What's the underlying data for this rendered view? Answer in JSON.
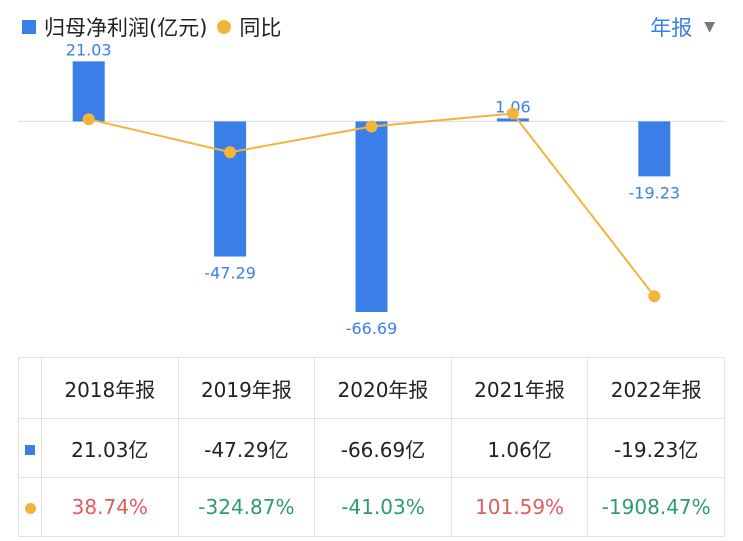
{
  "legend": {
    "bar_label": "归母净利润(亿元)",
    "line_label": "同比"
  },
  "period_selector": {
    "label": "年报"
  },
  "colors": {
    "bar": "#3a7fe8",
    "line": "#f3b43c",
    "positive": "#e05d5d",
    "negative": "#2e9c6e"
  },
  "chart_data": {
    "type": "bar",
    "categories": [
      "2018年报",
      "2019年报",
      "2020年报",
      "2021年报",
      "2022年报"
    ],
    "series": [
      {
        "name": "归母净利润(亿元)",
        "type": "bar",
        "values": [
          21.03,
          -47.29,
          -66.69,
          1.06,
          -19.23
        ],
        "labels": [
          "21.03",
          "-47.29",
          "-66.69",
          "1.06",
          "-19.23"
        ]
      },
      {
        "name": "同比",
        "type": "line",
        "values": [
          38.74,
          -324.87,
          -41.03,
          101.59,
          -1908.47
        ]
      }
    ],
    "bar_axis": {
      "min": -80,
      "max": 25
    },
    "line_axis": {
      "min": -2500,
      "max": 800
    }
  },
  "table": {
    "headers": [
      "2018年报",
      "2019年报",
      "2020年报",
      "2021年报",
      "2022年报"
    ],
    "profit_row": [
      "21.03亿",
      "-47.29亿",
      "-66.69亿",
      "1.06亿",
      "-19.23亿"
    ],
    "yoy_row": [
      "38.74%",
      "-324.87%",
      "-41.03%",
      "101.59%",
      "-1908.47%"
    ]
  }
}
